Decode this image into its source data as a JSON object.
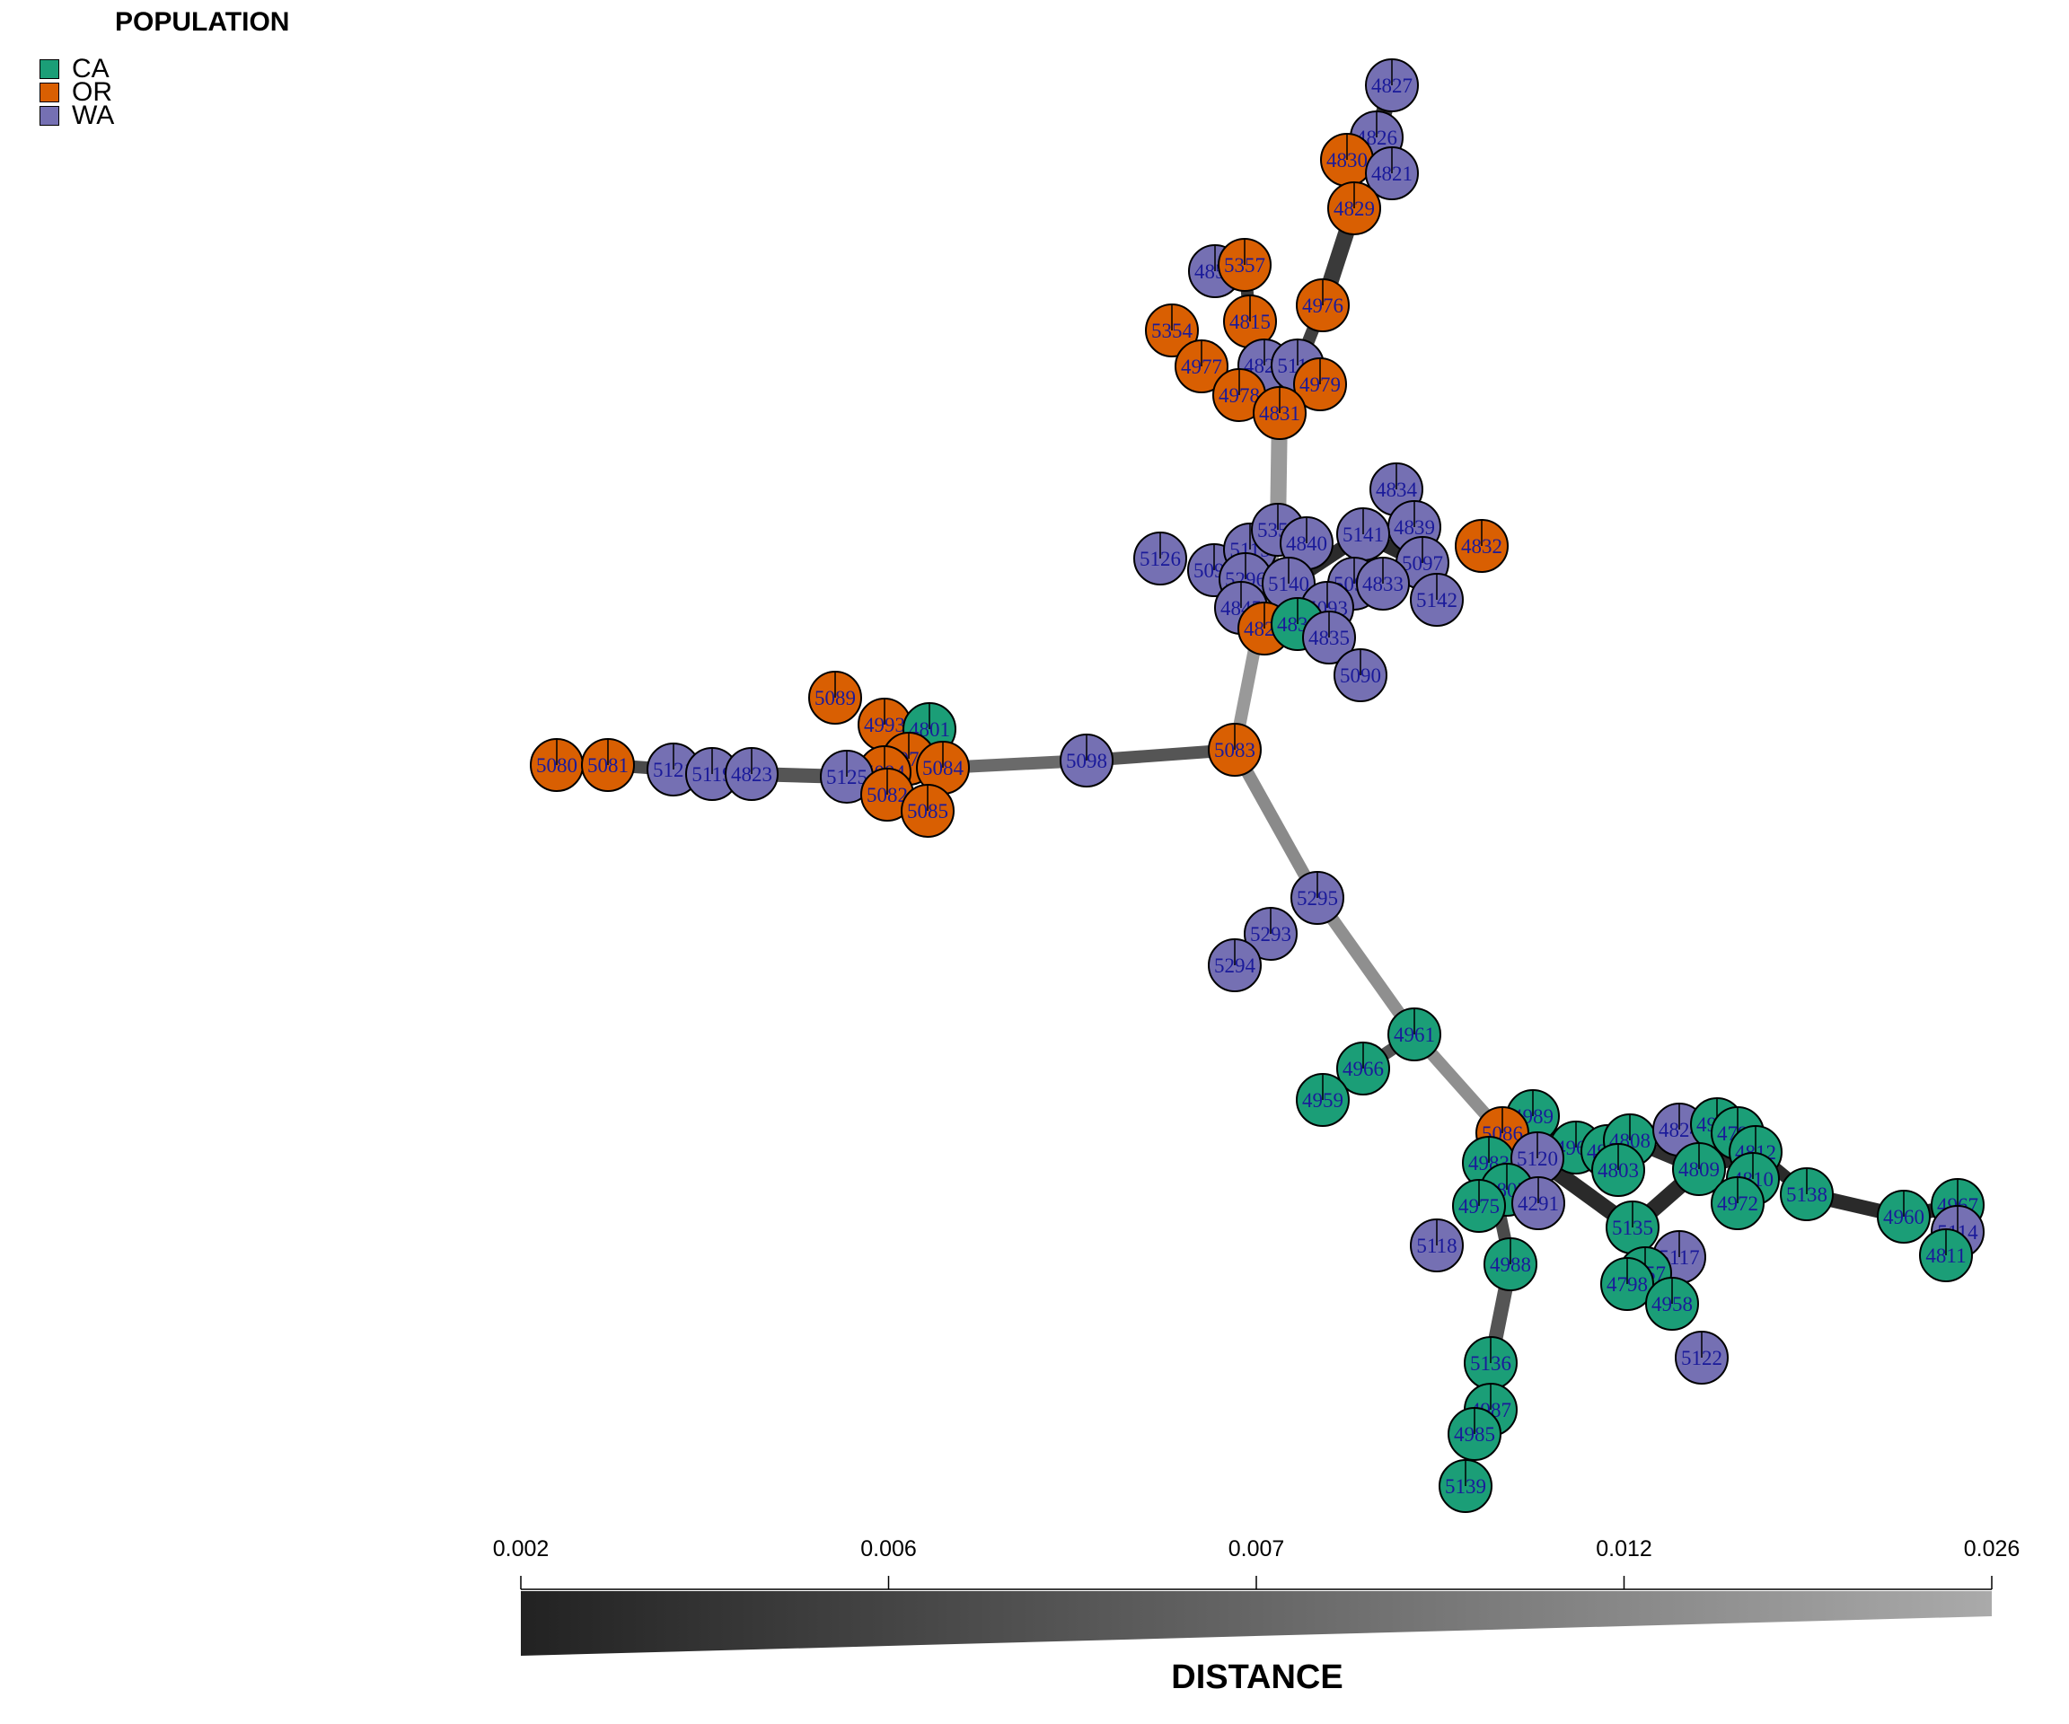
{
  "legend": {
    "title": "POPULATION",
    "items": [
      {
        "label": "CA",
        "color": "#1b9e77"
      },
      {
        "label": "OR",
        "color": "#d95f02"
      },
      {
        "label": "WA",
        "color": "#7570b3"
      }
    ]
  },
  "distance_scale": {
    "title": "DISTANCE",
    "ticks": [
      "0.002",
      "0.006",
      "0.007",
      "0.012",
      "0.026"
    ],
    "gradient_dark": "#222222",
    "gradient_light": "#aaaaaa"
  },
  "node_label_color": "#1a1a9a",
  "nodes": [
    {
      "id": "4827",
      "pop": "WA"
    },
    {
      "id": "4826",
      "pop": "WA"
    },
    {
      "id": "4830",
      "pop": "OR"
    },
    {
      "id": "4821",
      "pop": "WA"
    },
    {
      "id": "4829",
      "pop": "OR"
    },
    {
      "id": "4853",
      "pop": "WA"
    },
    {
      "id": "5357",
      "pop": "OR"
    },
    {
      "id": "4976",
      "pop": "OR"
    },
    {
      "id": "5354",
      "pop": "OR"
    },
    {
      "id": "4815",
      "pop": "OR"
    },
    {
      "id": "4977",
      "pop": "OR"
    },
    {
      "id": "4825",
      "pop": "WA"
    },
    {
      "id": "5116",
      "pop": "WA"
    },
    {
      "id": "4979",
      "pop": "OR"
    },
    {
      "id": "4978",
      "pop": "OR"
    },
    {
      "id": "4831",
      "pop": "OR"
    },
    {
      "id": "4834",
      "pop": "WA"
    },
    {
      "id": "4839",
      "pop": "WA"
    },
    {
      "id": "4832",
      "pop": "OR"
    },
    {
      "id": "5126",
      "pop": "WA"
    },
    {
      "id": "5099",
      "pop": "WA"
    },
    {
      "id": "5115",
      "pop": "WA"
    },
    {
      "id": "5353",
      "pop": "WA"
    },
    {
      "id": "4840",
      "pop": "WA"
    },
    {
      "id": "5141",
      "pop": "WA"
    },
    {
      "id": "5097",
      "pop": "WA"
    },
    {
      "id": "5296",
      "pop": "WA"
    },
    {
      "id": "5140",
      "pop": "WA"
    },
    {
      "id": "5092",
      "pop": "WA"
    },
    {
      "id": "4833",
      "pop": "WA"
    },
    {
      "id": "5142",
      "pop": "WA"
    },
    {
      "id": "4845",
      "pop": "WA"
    },
    {
      "id": "5093",
      "pop": "WA"
    },
    {
      "id": "4828",
      "pop": "OR"
    },
    {
      "id": "4838",
      "pop": "CA"
    },
    {
      "id": "4835",
      "pop": "WA"
    },
    {
      "id": "5090",
      "pop": "WA"
    },
    {
      "id": "5089",
      "pop": "OR"
    },
    {
      "id": "4993",
      "pop": "OR"
    },
    {
      "id": "4801",
      "pop": "CA"
    },
    {
      "id": "5079",
      "pop": "OR"
    },
    {
      "id": "5084",
      "pop": "OR"
    },
    {
      "id": "5094",
      "pop": "OR"
    },
    {
      "id": "5125",
      "pop": "WA"
    },
    {
      "id": "5082",
      "pop": "OR"
    },
    {
      "id": "5085",
      "pop": "OR"
    },
    {
      "id": "5080",
      "pop": "OR"
    },
    {
      "id": "5081",
      "pop": "OR"
    },
    {
      "id": "5121",
      "pop": "WA"
    },
    {
      "id": "5119",
      "pop": "WA"
    },
    {
      "id": "4823",
      "pop": "WA"
    },
    {
      "id": "5098",
      "pop": "WA"
    },
    {
      "id": "5083",
      "pop": "OR"
    },
    {
      "id": "5295",
      "pop": "WA"
    },
    {
      "id": "5293",
      "pop": "WA"
    },
    {
      "id": "5294",
      "pop": "WA"
    },
    {
      "id": "4961",
      "pop": "CA"
    },
    {
      "id": "4966",
      "pop": "CA"
    },
    {
      "id": "4959",
      "pop": "CA"
    },
    {
      "id": "4989",
      "pop": "CA"
    },
    {
      "id": "5086",
      "pop": "OR"
    },
    {
      "id": "4969",
      "pop": "CA"
    },
    {
      "id": "4984",
      "pop": "CA"
    },
    {
      "id": "4808",
      "pop": "CA"
    },
    {
      "id": "4824",
      "pop": "WA"
    },
    {
      "id": "4981",
      "pop": "CA"
    },
    {
      "id": "4799",
      "pop": "CA"
    },
    {
      "id": "4983",
      "pop": "CA"
    },
    {
      "id": "5120",
      "pop": "WA"
    },
    {
      "id": "4803",
      "pop": "CA"
    },
    {
      "id": "4809",
      "pop": "CA"
    },
    {
      "id": "4812",
      "pop": "CA"
    },
    {
      "id": "4807",
      "pop": "CA"
    },
    {
      "id": "4810",
      "pop": "CA"
    },
    {
      "id": "4975",
      "pop": "CA"
    },
    {
      "id": "4291",
      "pop": "WA"
    },
    {
      "id": "4972",
      "pop": "CA"
    },
    {
      "id": "5138",
      "pop": "CA"
    },
    {
      "id": "4967",
      "pop": "CA"
    },
    {
      "id": "4960",
      "pop": "CA"
    },
    {
      "id": "5114",
      "pop": "WA"
    },
    {
      "id": "4811",
      "pop": "CA"
    },
    {
      "id": "5135",
      "pop": "CA"
    },
    {
      "id": "5118",
      "pop": "WA"
    },
    {
      "id": "4988",
      "pop": "CA"
    },
    {
      "id": "5117",
      "pop": "WA"
    },
    {
      "id": "4957",
      "pop": "CA"
    },
    {
      "id": "4798",
      "pop": "CA"
    },
    {
      "id": "4958",
      "pop": "CA"
    },
    {
      "id": "5122",
      "pop": "WA"
    },
    {
      "id": "5136",
      "pop": "CA"
    },
    {
      "id": "4987",
      "pop": "CA"
    },
    {
      "id": "4985",
      "pop": "CA"
    },
    {
      "id": "5139",
      "pop": "CA"
    }
  ],
  "edges": [
    {
      "from": "4827",
      "to": "4826"
    },
    {
      "from": "4826",
      "to": "4821"
    },
    {
      "from": "4830",
      "to": "4829"
    },
    {
      "from": "4829",
      "to": "4976"
    },
    {
      "from": "4976",
      "to": "4831"
    },
    {
      "from": "4831",
      "to": "5353"
    },
    {
      "from": "4831",
      "to": "4815"
    },
    {
      "from": "5357",
      "to": "4815"
    },
    {
      "from": "5353",
      "to": "5083"
    },
    {
      "from": "5140",
      "to": "5141"
    },
    {
      "from": "5141",
      "to": "5097"
    },
    {
      "from": "5097",
      "to": "5142"
    },
    {
      "from": "5083",
      "to": "5098"
    },
    {
      "from": "5098",
      "to": "5084"
    },
    {
      "from": "5084",
      "to": "5079"
    },
    {
      "from": "5125",
      "to": "4823"
    },
    {
      "from": "4823",
      "to": "5119"
    },
    {
      "from": "5119",
      "to": "5121"
    },
    {
      "from": "5121",
      "to": "5081"
    },
    {
      "from": "5081",
      "to": "5080"
    },
    {
      "from": "5083",
      "to": "5295"
    },
    {
      "from": "5295",
      "to": "4961"
    },
    {
      "from": "4961",
      "to": "5086"
    },
    {
      "from": "4961",
      "to": "4966"
    },
    {
      "from": "5120",
      "to": "5135"
    },
    {
      "from": "5135",
      "to": "4809"
    },
    {
      "from": "4809",
      "to": "4812"
    },
    {
      "from": "4812",
      "to": "5138"
    },
    {
      "from": "5138",
      "to": "4960"
    },
    {
      "from": "4960",
      "to": "4967"
    },
    {
      "from": "4969",
      "to": "4808"
    },
    {
      "from": "4808",
      "to": "4809"
    },
    {
      "from": "5135",
      "to": "4957"
    },
    {
      "from": "5135",
      "to": "4958"
    },
    {
      "from": "4983",
      "to": "4988"
    },
    {
      "from": "4988",
      "to": "5136"
    },
    {
      "from": "5136",
      "to": "4987"
    }
  ]
}
